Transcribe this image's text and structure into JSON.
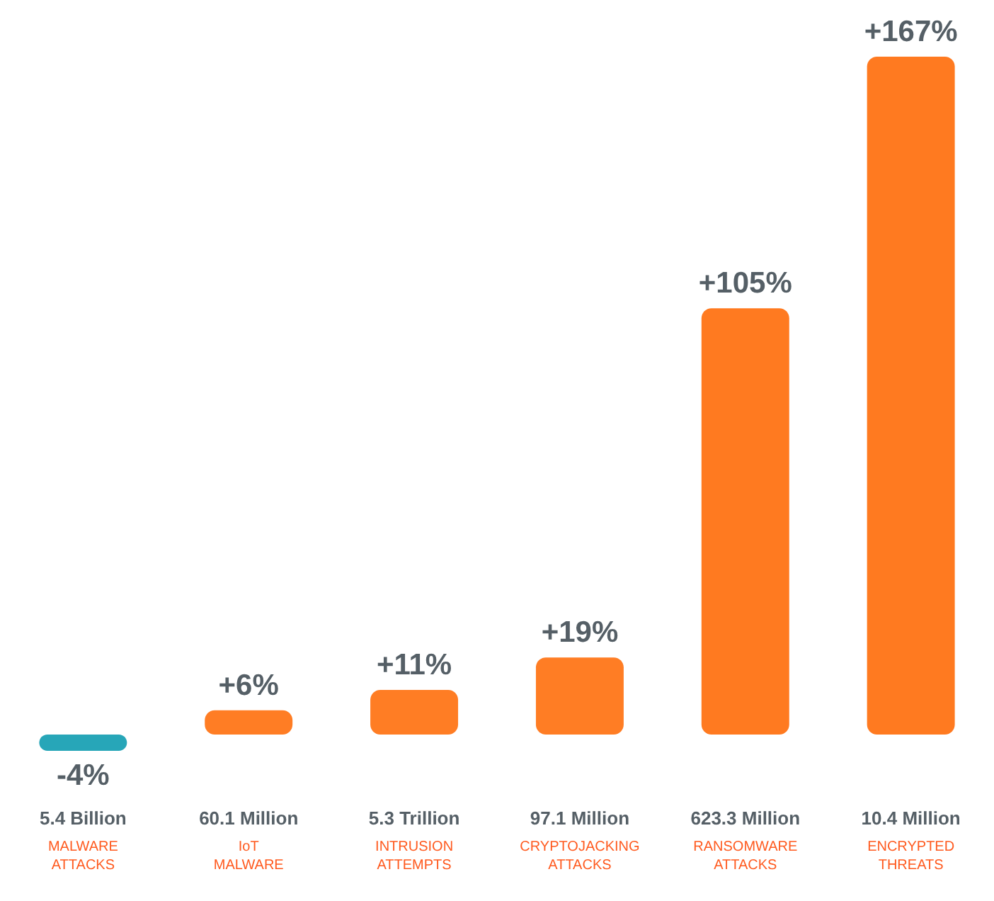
{
  "chart_data": {
    "type": "bar",
    "categories": [
      "MALWARE ATTACKS",
      "IoT MALWARE",
      "INTRUSION ATTEMPTS",
      "CRYPTOJACKING ATTACKS",
      "RANSOMWARE ATTACKS",
      "ENCRYPTED THREATS"
    ],
    "values": [
      -4,
      6,
      11,
      19,
      105,
      167
    ],
    "colors": [
      "#27a6b8",
      "#ff7d24",
      "#ff7d24",
      "#ff7d24",
      "#ff7a20",
      "#ff7a20"
    ],
    "value_labels": [
      "-4%",
      "+6%",
      "+11%",
      "+19%",
      "+105%",
      "+167%"
    ],
    "annotations": [
      "5.4 Billion",
      "60.1 Million",
      "5.3 Trillion",
      "97.1 Million",
      "623.3 Million",
      "10.4 Million"
    ],
    "tick_labels": "x"
  }
}
